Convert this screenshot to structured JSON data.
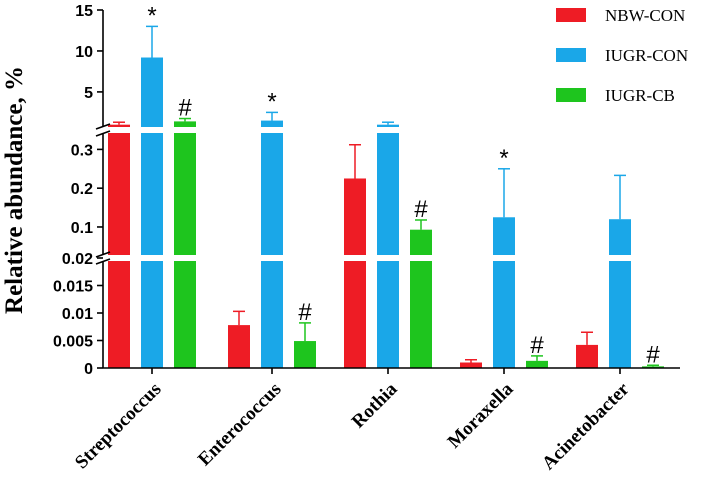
{
  "chart_data": {
    "type": "bar",
    "ylabel": "Relative abundance, %",
    "y_axis": "broken scale with three segments",
    "segments": [
      {
        "range": [
          0,
          0.02
        ],
        "ticks": [
          "0",
          "0.005",
          "0.01",
          "0.015",
          "0.02"
        ]
      },
      {
        "range": [
          0.02,
          0.35
        ],
        "ticks": [
          "0.1",
          "0.2",
          "0.3"
        ]
      },
      {
        "range": [
          0.35,
          15
        ],
        "ticks": [
          "5",
          "10",
          "15"
        ]
      }
    ],
    "categories": [
      "Streptococcus",
      "Enterococcus",
      "Rothia",
      "Moraxella",
      "Acinetobacter"
    ],
    "series": [
      {
        "name": "NBW-CON",
        "color": "#ee1c25",
        "values": [
          1.0,
          0.0078,
          0.225,
          0.001,
          0.0042
        ],
        "errors": [
          0.3,
          0.0025,
          0.087,
          0.0005,
          0.0023
        ],
        "markers": [
          "",
          "",
          "",
          "",
          ""
        ]
      },
      {
        "name": "IUGR-CON",
        "color": "#1aa7e8",
        "values": [
          9.2,
          1.5,
          1.0,
          0.125,
          0.12
        ],
        "errors": [
          3.8,
          1.0,
          0.3,
          0.125,
          0.113
        ],
        "markers": [
          "*",
          "*",
          "",
          "*",
          ""
        ]
      },
      {
        "name": "IUGR-CB",
        "color": "#1ec51e",
        "values": [
          1.4,
          0.0049,
          0.093,
          0.0013,
          0.0003
        ],
        "errors": [
          0.35,
          0.0033,
          0.025,
          0.0009,
          0.0002
        ],
        "markers": [
          "#",
          "#",
          "#",
          "#",
          "#"
        ]
      }
    ],
    "legend_position": "top-right",
    "grid": false
  }
}
